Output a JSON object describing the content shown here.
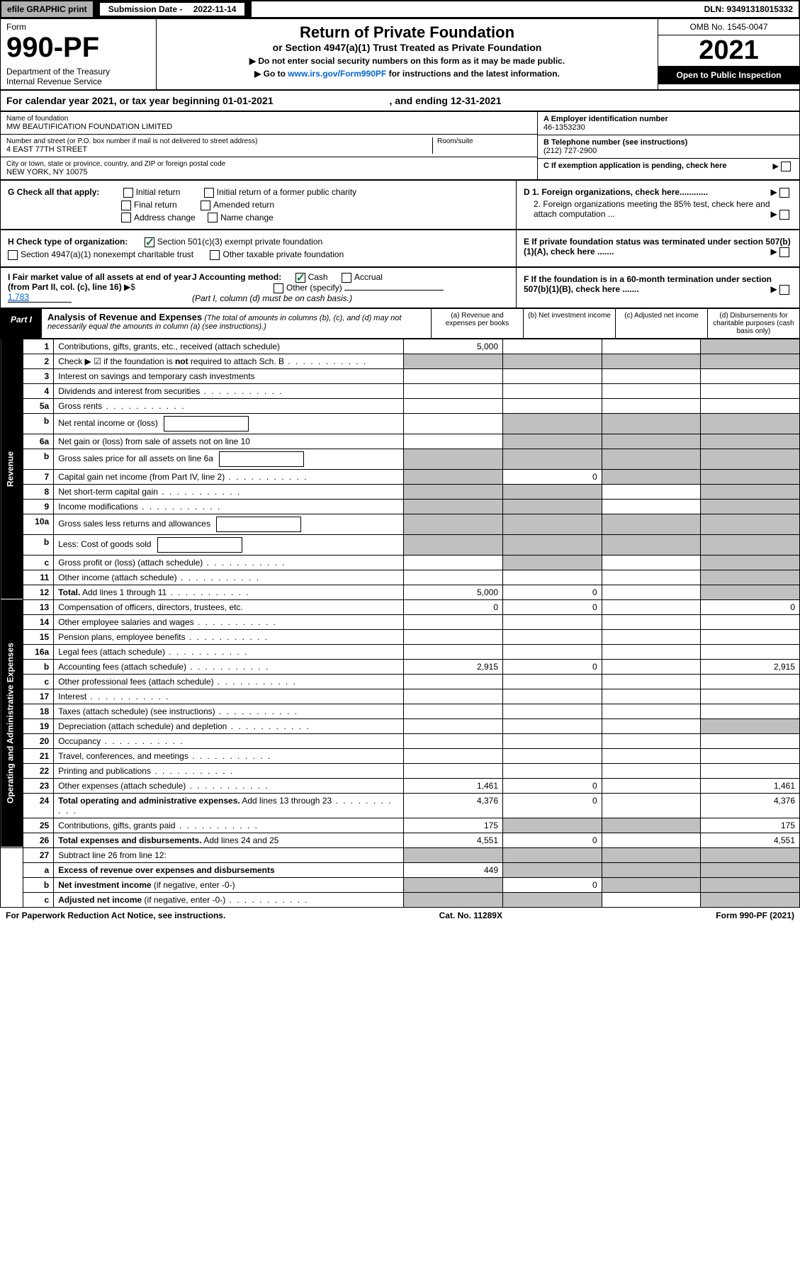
{
  "topbar": {
    "efile": "efile GRAPHIC print",
    "sub_label": "Submission Date - ",
    "sub_date": "2022-11-14",
    "dln": "DLN: 93491318015332"
  },
  "header": {
    "form_word": "Form",
    "form_num": "990-PF",
    "dept": "Department of the Treasury\nInternal Revenue Service",
    "title": "Return of Private Foundation",
    "subtitle": "or Section 4947(a)(1) Trust Treated as Private Foundation",
    "instr1": "▶ Do not enter social security numbers on this form as it may be made public.",
    "instr2_pre": "▶ Go to ",
    "instr2_link": "www.irs.gov/Form990PF",
    "instr2_post": " for instructions and the latest information.",
    "omb": "OMB No. 1545-0047",
    "year": "2021",
    "open_pub": "Open to Public Inspection"
  },
  "cal_year": {
    "pre": "For calendar year 2021, or tax year beginning ",
    "begin": "01-01-2021",
    "mid": " , and ending ",
    "end": "12-31-2021"
  },
  "entity": {
    "name_label": "Name of foundation",
    "name": "MW BEAUTIFICATION FOUNDATION LIMITED",
    "addr_label": "Number and street (or P.O. box number if mail is not delivered to street address)",
    "addr": "4 EAST 77TH STREET",
    "room_label": "Room/suite",
    "room": "",
    "city_label": "City or town, state or province, country, and ZIP or foreign postal code",
    "city": "NEW YORK, NY  10075",
    "ein_label": "A Employer identification number",
    "ein": "46-1353230",
    "phone_label": "B Telephone number (see instructions)",
    "phone": "(212) 727-2900",
    "c_label": "C If exemption application is pending, check here",
    "d1": "D 1. Foreign organizations, check here............",
    "d2": "2. Foreign organizations meeting the 85% test, check here and attach computation ...",
    "e": "E  If private foundation status was terminated under section 507(b)(1)(A), check here .......",
    "f": "F  If the foundation is in a 60-month termination under section 507(b)(1)(B), check here .......",
    "g_label": "G Check all that apply:",
    "g_opts": [
      "Initial return",
      "Initial return of a former public charity",
      "Final return",
      "Amended return",
      "Address change",
      "Name change"
    ],
    "h_label": "H Check type of organization:",
    "h1": "Section 501(c)(3) exempt private foundation",
    "h2": "Section 4947(a)(1) nonexempt charitable trust",
    "h3": "Other taxable private foundation",
    "i_label": "I Fair market value of all assets at end of year (from Part II, col. (c), line 16)",
    "i_val": "1,783",
    "j_label": "J Accounting method:",
    "j_cash": "Cash",
    "j_accr": "Accrual",
    "j_other": "Other (specify)",
    "j_note": "(Part I, column (d) must be on cash basis.)"
  },
  "part1": {
    "tag": "Part I",
    "title": "Analysis of Revenue and Expenses",
    "note": " (The total of amounts in columns (b), (c), and (d) may not necessarily equal the amounts in column (a) (see instructions).)",
    "cols": {
      "a": "(a) Revenue and expenses per books",
      "b": "(b) Net investment income",
      "c": "(c) Adjusted net income",
      "d": "(d) Disbursements for charitable purposes (cash basis only)"
    }
  },
  "sections": {
    "revenue": "Revenue",
    "opex": "Operating and Administrative Expenses"
  },
  "rows": [
    {
      "sec": "rev",
      "n": "1",
      "lbl": "Contributions, gifts, grants, etc., received (attach schedule)",
      "a": "5,000",
      "d_grey": true
    },
    {
      "sec": "rev",
      "n": "2",
      "lbl": "Check ▶ ☑ if the foundation is <b>not</b> required to attach Sch. B",
      "dots": true,
      "all_grey": true,
      "checked": true
    },
    {
      "sec": "rev",
      "n": "3",
      "lbl": "Interest on savings and temporary cash investments"
    },
    {
      "sec": "rev",
      "n": "4",
      "lbl": "Dividends and interest from securities",
      "dots": true
    },
    {
      "sec": "rev",
      "n": "5a",
      "lbl": "Gross rents",
      "dots": true
    },
    {
      "sec": "rev",
      "n": "b",
      "lbl": "Net rental income or (loss)",
      "inline": true,
      "bcd_grey": true
    },
    {
      "sec": "rev",
      "n": "6a",
      "lbl": "Net gain or (loss) from sale of assets not on line 10",
      "bcd_grey": true
    },
    {
      "sec": "rev",
      "n": "b",
      "lbl": "Gross sales price for all assets on line 6a",
      "inline": true,
      "all_grey": true
    },
    {
      "sec": "rev",
      "n": "7",
      "lbl": "Capital gain net income (from Part IV, line 2)",
      "dots": true,
      "b": "0",
      "a_grey": true,
      "cd_grey": true
    },
    {
      "sec": "rev",
      "n": "8",
      "lbl": "Net short-term capital gain",
      "dots": true,
      "ab_grey": true,
      "d_grey": true
    },
    {
      "sec": "rev",
      "n": "9",
      "lbl": "Income modifications",
      "dots": true,
      "ab_grey": true,
      "d_grey": true
    },
    {
      "sec": "rev",
      "n": "10a",
      "lbl": "Gross sales less returns and allowances",
      "inline": true,
      "all_grey": true
    },
    {
      "sec": "rev",
      "n": "b",
      "lbl": "Less: Cost of goods sold",
      "dots": true,
      "inline": true,
      "all_grey": true
    },
    {
      "sec": "rev",
      "n": "c",
      "lbl": "Gross profit or (loss) (attach schedule)",
      "dots": true,
      "b_grey": true,
      "d_grey": true
    },
    {
      "sec": "rev",
      "n": "11",
      "lbl": "Other income (attach schedule)",
      "dots": true,
      "d_grey": true
    },
    {
      "sec": "rev",
      "n": "12",
      "lbl": "<b>Total.</b> Add lines 1 through 11",
      "dots": true,
      "a": "5,000",
      "b": "0",
      "d_grey": true
    },
    {
      "sec": "op",
      "n": "13",
      "lbl": "Compensation of officers, directors, trustees, etc.",
      "a": "0",
      "b": "0",
      "d": "0"
    },
    {
      "sec": "op",
      "n": "14",
      "lbl": "Other employee salaries and wages",
      "dots": true
    },
    {
      "sec": "op",
      "n": "15",
      "lbl": "Pension plans, employee benefits",
      "dots": true
    },
    {
      "sec": "op",
      "n": "16a",
      "lbl": "Legal fees (attach schedule)",
      "dots": true
    },
    {
      "sec": "op",
      "n": "b",
      "lbl": "Accounting fees (attach schedule)",
      "dots": true,
      "a": "2,915",
      "b": "0",
      "d": "2,915"
    },
    {
      "sec": "op",
      "n": "c",
      "lbl": "Other professional fees (attach schedule)",
      "dots": true
    },
    {
      "sec": "op",
      "n": "17",
      "lbl": "Interest",
      "dots": true
    },
    {
      "sec": "op",
      "n": "18",
      "lbl": "Taxes (attach schedule) (see instructions)",
      "dots": true
    },
    {
      "sec": "op",
      "n": "19",
      "lbl": "Depreciation (attach schedule) and depletion",
      "dots": true,
      "d_grey": true
    },
    {
      "sec": "op",
      "n": "20",
      "lbl": "Occupancy",
      "dots": true
    },
    {
      "sec": "op",
      "n": "21",
      "lbl": "Travel, conferences, and meetings",
      "dots": true
    },
    {
      "sec": "op",
      "n": "22",
      "lbl": "Printing and publications",
      "dots": true
    },
    {
      "sec": "op",
      "n": "23",
      "lbl": "Other expenses (attach schedule)",
      "dots": true,
      "a": "1,461",
      "b": "0",
      "d": "1,461"
    },
    {
      "sec": "op",
      "n": "24",
      "lbl": "<b>Total operating and administrative expenses.</b> Add lines 13 through 23",
      "dots": true,
      "a": "4,376",
      "b": "0",
      "d": "4,376"
    },
    {
      "sec": "op",
      "n": "25",
      "lbl": "Contributions, gifts, grants paid",
      "dots": true,
      "a": "175",
      "bc_grey": true,
      "d": "175"
    },
    {
      "sec": "op",
      "n": "26",
      "lbl": "<b>Total expenses and disbursements.</b> Add lines 24 and 25",
      "a": "4,551",
      "b": "0",
      "d": "4,551"
    },
    {
      "sec": "end",
      "n": "27",
      "lbl": "Subtract line 26 from line 12:",
      "all_grey": true
    },
    {
      "sec": "end",
      "n": "a",
      "lbl": "<b>Excess of revenue over expenses and disbursements</b>",
      "a": "449",
      "bcd_grey": true
    },
    {
      "sec": "end",
      "n": "b",
      "lbl": "<b>Net investment income</b> (if negative, enter -0-)",
      "a_grey": true,
      "b": "0",
      "cd_grey": true
    },
    {
      "sec": "end",
      "n": "c",
      "lbl": "<b>Adjusted net income</b> (if negative, enter -0-)",
      "dots": true,
      "ab_grey": true,
      "d_grey": true
    }
  ],
  "footer": {
    "left": "For Paperwork Reduction Act Notice, see instructions.",
    "mid": "Cat. No. 11289X",
    "right": "Form 990-PF (2021)"
  }
}
